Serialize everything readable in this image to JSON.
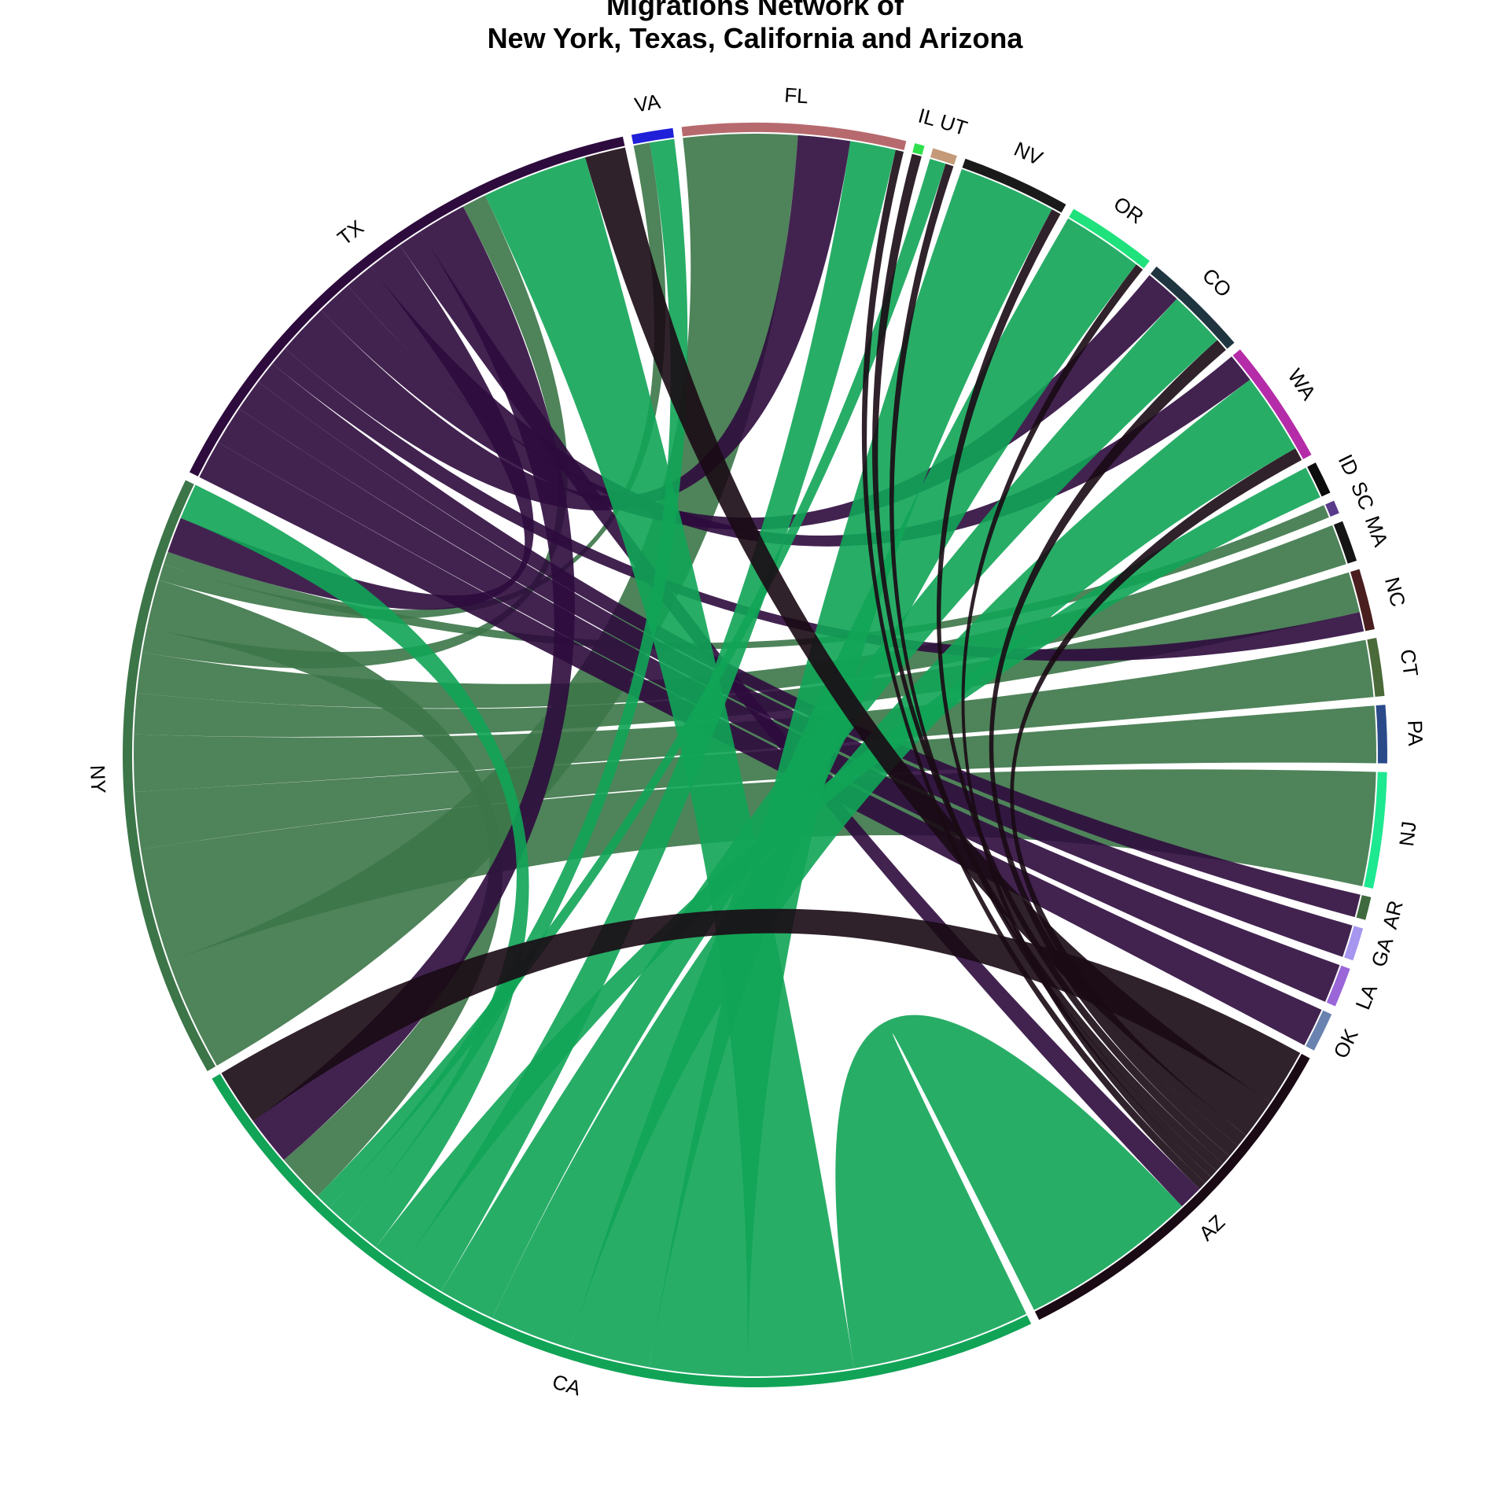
{
  "chart_data": {
    "type": "chord",
    "title_lines": [
      "Migrations Network of",
      "New York, Texas, California and Arizona"
    ],
    "sectors": [
      {
        "name": "NY",
        "color": "#3c7548"
      },
      {
        "name": "TX",
        "color": "#2e0b3d"
      },
      {
        "name": "VA",
        "color": "#2020d8"
      },
      {
        "name": "FL",
        "color": "#b76a6d"
      },
      {
        "name": "IL",
        "color": "#2fe04c"
      },
      {
        "name": "UT",
        "color": "#c49a78"
      },
      {
        "name": "NV",
        "color": "#1a1a1a"
      },
      {
        "name": "OR",
        "color": "#1fe27c"
      },
      {
        "name": "CO",
        "color": "#1f3540"
      },
      {
        "name": "WA",
        "color": "#b52ca8"
      },
      {
        "name": "ID",
        "color": "#0d0d0d"
      },
      {
        "name": "SC",
        "color": "#5a3a8a"
      },
      {
        "name": "MA",
        "color": "#151515"
      },
      {
        "name": "NC",
        "color": "#4a1e1e"
      },
      {
        "name": "CT",
        "color": "#4a6a3a"
      },
      {
        "name": "PA",
        "color": "#2a4a8a"
      },
      {
        "name": "NJ",
        "color": "#1ee890"
      },
      {
        "name": "AR",
        "color": "#3f6a3f"
      },
      {
        "name": "GA",
        "color": "#a696f0"
      },
      {
        "name": "LA",
        "color": "#9a66d8"
      },
      {
        "name": "OK",
        "color": "#6a82b0"
      },
      {
        "name": "AZ",
        "color": "#1a0a14"
      },
      {
        "name": "CA",
        "color": "#11a457"
      }
    ],
    "flows": [
      {
        "from": "NY",
        "to": "FL",
        "value": 7.0
      },
      {
        "from": "NY",
        "to": "NJ",
        "value": 7.0
      },
      {
        "from": "NY",
        "to": "PA",
        "value": 3.5
      },
      {
        "from": "NY",
        "to": "CT",
        "value": 3.5
      },
      {
        "from": "NY",
        "to": "NC",
        "value": 2.5
      },
      {
        "from": "NY",
        "to": "MA",
        "value": 2.5
      },
      {
        "from": "NY",
        "to": "TX",
        "value": 1.5
      },
      {
        "from": "NY",
        "to": "CA",
        "value": 3.0
      },
      {
        "from": "NY",
        "to": "VA",
        "value": 1.0
      },
      {
        "from": "NY",
        "to": "SC",
        "value": 0.8
      },
      {
        "from": "TX",
        "to": "OK",
        "value": 2.4
      },
      {
        "from": "TX",
        "to": "LA",
        "value": 2.4
      },
      {
        "from": "TX",
        "to": "GA",
        "value": 2.0
      },
      {
        "from": "TX",
        "to": "AR",
        "value": 1.4
      },
      {
        "from": "TX",
        "to": "NC",
        "value": 1.2
      },
      {
        "from": "TX",
        "to": "FL",
        "value": 3.2
      },
      {
        "from": "TX",
        "to": "CO",
        "value": 2.2
      },
      {
        "from": "TX",
        "to": "WA",
        "value": 1.8
      },
      {
        "from": "TX",
        "to": "NY",
        "value": 2.2
      },
      {
        "from": "TX",
        "to": "AZ",
        "value": 1.5
      },
      {
        "from": "TX",
        "to": "CA",
        "value": 3.0
      },
      {
        "from": "CA",
        "to": "AZ",
        "value": 11.0
      },
      {
        "from": "CA",
        "to": "TX",
        "value": 6.5
      },
      {
        "from": "CA",
        "to": "NV",
        "value": 6.0
      },
      {
        "from": "CA",
        "to": "OR",
        "value": 5.0
      },
      {
        "from": "CA",
        "to": "WA",
        "value": 5.0
      },
      {
        "from": "CA",
        "to": "CO",
        "value": 3.5
      },
      {
        "from": "CA",
        "to": "FL",
        "value": 2.8
      },
      {
        "from": "CA",
        "to": "ID",
        "value": 2.0
      },
      {
        "from": "CA",
        "to": "NY",
        "value": 2.2
      },
      {
        "from": "CA",
        "to": "VA",
        "value": 1.5
      },
      {
        "from": "CA",
        "to": "UT",
        "value": 1.0
      },
      {
        "from": "AZ",
        "to": "CA",
        "value": 3.5
      },
      {
        "from": "AZ",
        "to": "TX",
        "value": 2.5
      },
      {
        "from": "AZ",
        "to": "WA",
        "value": 0.8
      },
      {
        "from": "AZ",
        "to": "CO",
        "value": 0.8
      },
      {
        "from": "AZ",
        "to": "NV",
        "value": 0.6
      },
      {
        "from": "AZ",
        "to": "IL",
        "value": 0.6
      },
      {
        "from": "AZ",
        "to": "UT",
        "value": 0.5
      },
      {
        "from": "AZ",
        "to": "OR",
        "value": 0.5
      },
      {
        "from": "AZ",
        "to": "FL",
        "value": 0.5
      }
    ]
  }
}
